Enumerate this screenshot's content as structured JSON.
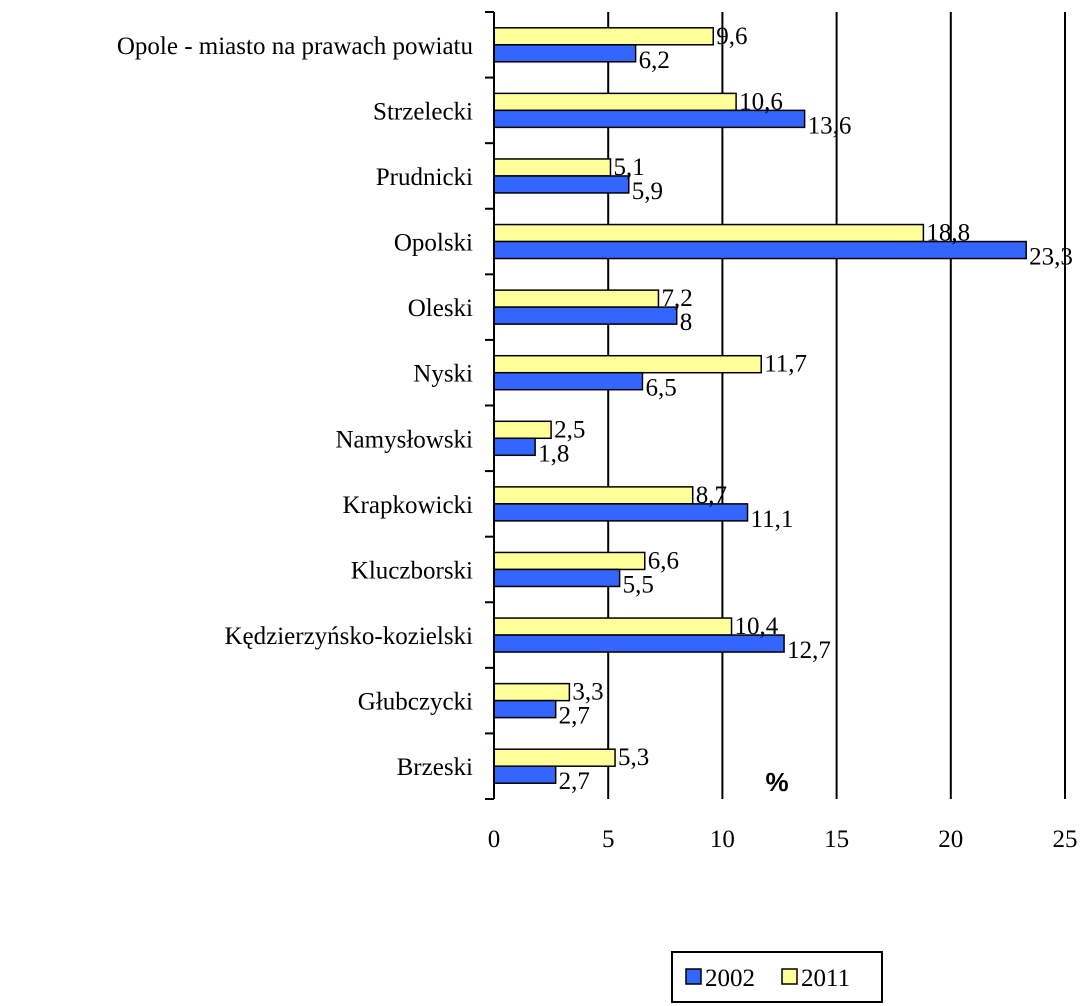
{
  "chart_data": {
    "type": "bar",
    "orientation": "horizontal",
    "categories": [
      "Opole - miasto na prawach powiatu",
      "Strzelecki",
      "Prudnicki",
      "Opolski",
      "Oleski",
      "Nyski",
      "Namysłowski",
      "Krapkowicki",
      "Kluczborski",
      "Kędzierzyńsko-kozielski",
      "Głubczycki",
      "Brzeski"
    ],
    "series": [
      {
        "name": "2002",
        "color": "#3366FF",
        "values": [
          6.2,
          13.6,
          5.9,
          23.3,
          8,
          6.5,
          1.8,
          11.1,
          5.5,
          12.7,
          2.7,
          2.7
        ],
        "labels": [
          "6,2",
          "13,6",
          "5,9",
          "23,3",
          "8",
          "6,5",
          "1,8",
          "11,1",
          "5,5",
          "12,7",
          "2,7",
          "2,7"
        ]
      },
      {
        "name": "2011",
        "color": "#FFFF99",
        "values": [
          9.6,
          10.6,
          5.1,
          18.8,
          7.2,
          11.7,
          2.5,
          8.7,
          6.6,
          10.4,
          3.3,
          5.3
        ],
        "labels": [
          "9,6",
          "10,6",
          "5,1",
          "18,8",
          "7,2",
          "11,7",
          "2,5",
          "8,7",
          "6,6",
          "10,4",
          "3,3",
          "5,3"
        ]
      }
    ],
    "xlabel": "%",
    "xlim": [
      0,
      25
    ],
    "xticks": [
      "0",
      "5",
      "10",
      "15",
      "20",
      "25"
    ],
    "grid": true,
    "legend_position": "bottom"
  }
}
